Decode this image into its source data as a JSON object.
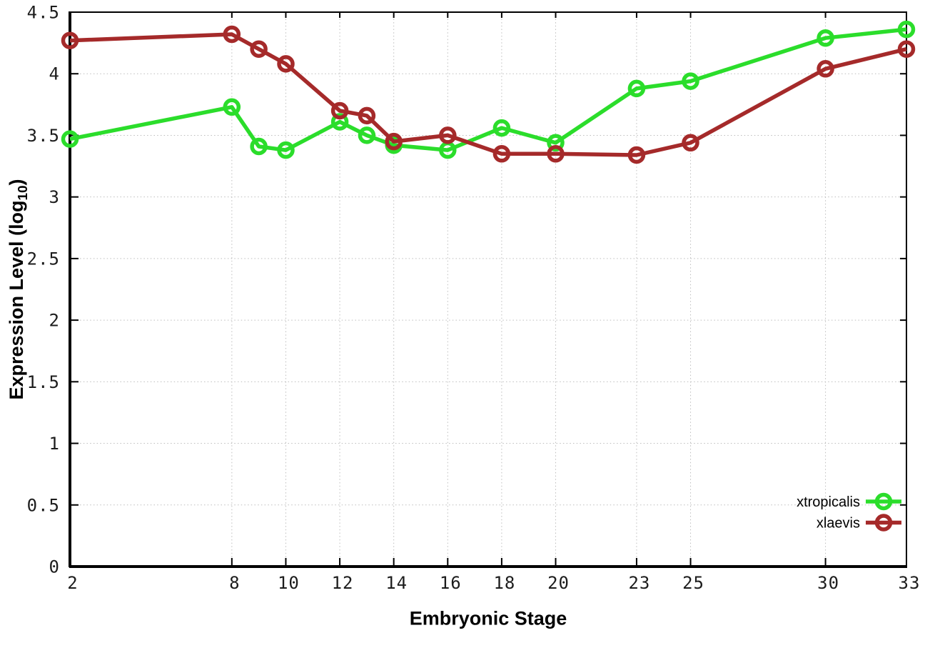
{
  "chart_data": {
    "type": "line",
    "title": "",
    "xlabel": "Embryonic Stage",
    "ylabel_pre": "Expression Level (log",
    "ylabel_sub": "10",
    "ylabel_post": ")",
    "x": [
      2,
      8,
      9,
      10,
      12,
      13,
      14,
      16,
      18,
      20,
      23,
      25,
      30,
      33
    ],
    "series": [
      {
        "name": "xtropicalis",
        "color": "#2bdd2b",
        "marker": "open-circle",
        "values": [
          3.47,
          3.73,
          3.41,
          3.38,
          3.61,
          3.5,
          3.42,
          3.38,
          3.56,
          3.44,
          3.88,
          3.94,
          4.29,
          4.36
        ]
      },
      {
        "name": "xlaevis",
        "color": "#a52a2a",
        "marker": "open-circle",
        "values": [
          4.27,
          4.32,
          4.2,
          4.08,
          3.7,
          3.66,
          3.45,
          3.5,
          3.35,
          3.35,
          3.34,
          3.44,
          4.04,
          4.2
        ]
      }
    ],
    "xlim": [
      2,
      33
    ],
    "ylim": [
      0,
      4.5
    ],
    "xticks": [
      2,
      8,
      10,
      12,
      14,
      16,
      18,
      20,
      23,
      25,
      30,
      33
    ],
    "yticks": [
      "0",
      "0.5",
      "1",
      "1.5",
      "2",
      "2.5",
      "3",
      "3.5",
      "4",
      "4.5"
    ],
    "grid": "dotted",
    "legend_position": "inside bottom-right",
    "colors": {
      "background": "#ffffff",
      "axis": "#000000",
      "grid": "#bdbdbd",
      "tick_text": "#1c1c1c"
    }
  }
}
